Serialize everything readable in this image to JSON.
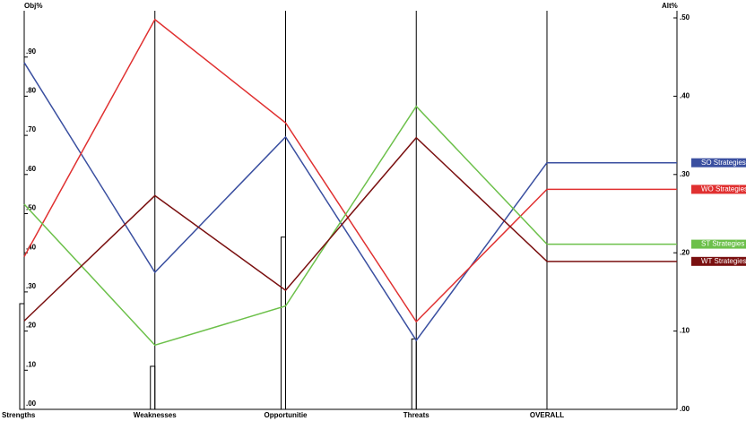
{
  "chart_data": {
    "type": "line",
    "y_label": "Obj%",
    "y2_label": "Alt%",
    "categories": [
      "Strengths",
      "Weaknesses",
      "Opportunitie",
      "Threats",
      "OVERALL"
    ],
    "bars": {
      "color": "#000000",
      "values": [
        0.27,
        0.11,
        0.44,
        0.18,
        null
      ]
    },
    "series": [
      {
        "name": "SO Strategies",
        "color": "#3a4fa0",
        "axis": "y2",
        "values": [
          0.443,
          0.175,
          0.348,
          0.088,
          0.315
        ]
      },
      {
        "name": "WO Strategies",
        "color": "#e03030",
        "axis": "y2",
        "values": [
          0.195,
          0.498,
          0.366,
          0.112,
          0.281
        ]
      },
      {
        "name": "ST Strategies",
        "color": "#6cc04a",
        "axis": "y2",
        "values": [
          0.262,
          0.082,
          0.132,
          0.387,
          0.211
        ]
      },
      {
        "name": "WT Strategies",
        "color": "#7a1010",
        "axis": "y2",
        "values": [
          0.113,
          0.273,
          0.152,
          0.347,
          0.189
        ]
      }
    ],
    "ylim": [
      0,
      1
    ],
    "yticks": [
      {
        "value": 0,
        "label": ".00"
      },
      {
        "value": 0.1,
        "label": ".10"
      },
      {
        "value": 0.2,
        "label": ".20"
      },
      {
        "value": 0.3,
        "label": ".30"
      },
      {
        "value": 0.4,
        "label": ".40"
      },
      {
        "value": 0.5,
        "label": ".50"
      },
      {
        "value": 0.6,
        "label": ".60"
      },
      {
        "value": 0.7,
        "label": ".70"
      },
      {
        "value": 0.8,
        "label": ".80"
      },
      {
        "value": 0.9,
        "label": ".90"
      }
    ],
    "y2lim": [
      0,
      0.5
    ],
    "y2ticks": [
      {
        "value": 0,
        "label": ".00"
      },
      {
        "value": 0.1,
        "label": ".10"
      },
      {
        "value": 0.2,
        "label": ".20"
      },
      {
        "value": 0.3,
        "label": ".30"
      },
      {
        "value": 0.4,
        "label": ".40"
      },
      {
        "value": 0.5,
        "label": ".50"
      }
    ]
  }
}
